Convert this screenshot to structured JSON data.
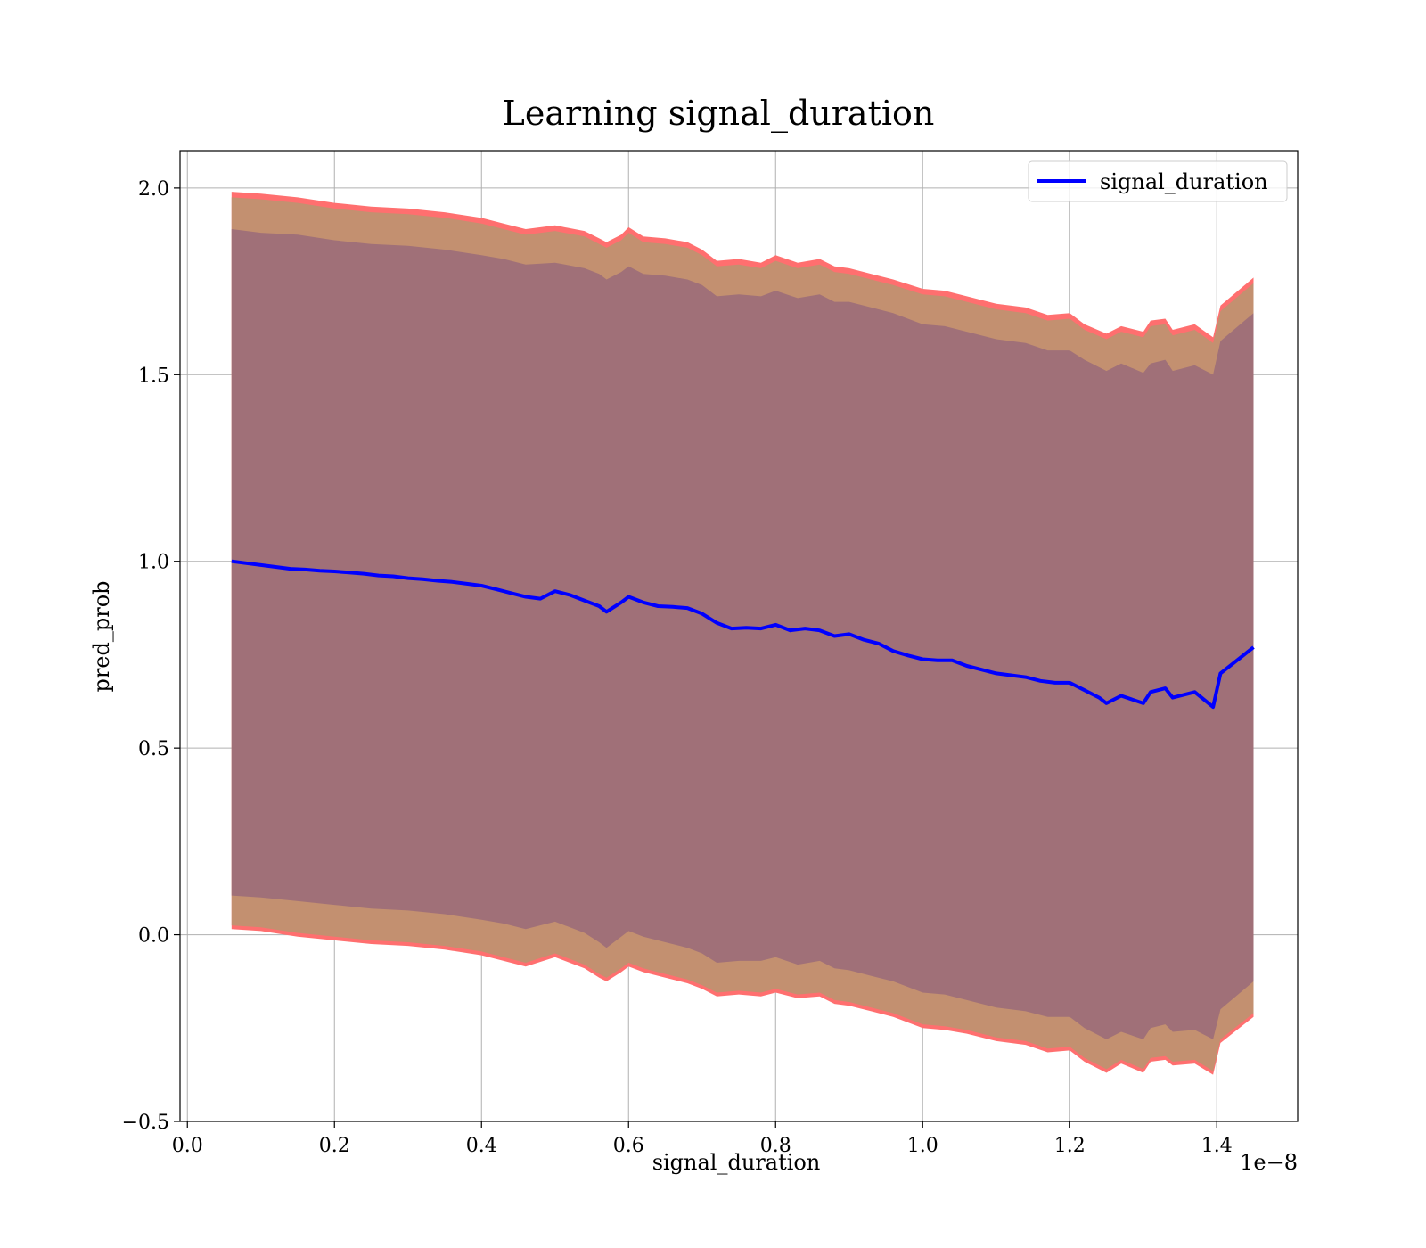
{
  "chart_data": {
    "type": "line",
    "title": "Learning signal_duration",
    "xlabel": "signal_duration",
    "ylabel": "pred_prob",
    "x_offset_label": "1e−8",
    "xlim": [
      -0.01,
      1.51
    ],
    "ylim": [
      -0.5,
      2.1
    ],
    "xticks": [
      0.0,
      0.2,
      0.4,
      0.6,
      0.8,
      1.0,
      1.2,
      1.4
    ],
    "xtick_labels": [
      "0.0",
      "0.2",
      "0.4",
      "0.6",
      "0.8",
      "1.0",
      "1.2",
      "1.4"
    ],
    "yticks": [
      -0.5,
      0.0,
      0.5,
      1.0,
      1.5,
      2.0
    ],
    "ytick_labels": [
      "−0.5",
      "0.0",
      "0.5",
      "1.0",
      "1.5",
      "2.0"
    ],
    "grid": true,
    "legend_position": "top-right",
    "colors": {
      "line": "#0000ff",
      "outer_band": "#ff6f6f",
      "middle_band": "#c39070",
      "inner_band": "#a07078",
      "grid": "#b0b0b0"
    },
    "series": [
      {
        "name": "signal_duration",
        "x": [
          0.06,
          0.08,
          0.1,
          0.12,
          0.14,
          0.16,
          0.18,
          0.2,
          0.22,
          0.24,
          0.26,
          0.28,
          0.3,
          0.32,
          0.34,
          0.36,
          0.38,
          0.4,
          0.42,
          0.44,
          0.46,
          0.48,
          0.5,
          0.52,
          0.54,
          0.56,
          0.57,
          0.59,
          0.6,
          0.62,
          0.64,
          0.66,
          0.68,
          0.7,
          0.72,
          0.74,
          0.76,
          0.78,
          0.8,
          0.82,
          0.84,
          0.86,
          0.88,
          0.9,
          0.92,
          0.94,
          0.96,
          0.98,
          1.0,
          1.02,
          1.04,
          1.06,
          1.08,
          1.1,
          1.12,
          1.14,
          1.16,
          1.18,
          1.2,
          1.22,
          1.24,
          1.25,
          1.27,
          1.3,
          1.31,
          1.33,
          1.34,
          1.37,
          1.395,
          1.405,
          1.45
        ],
        "y": [
          1.0,
          0.995,
          0.99,
          0.985,
          0.98,
          0.978,
          0.975,
          0.973,
          0.97,
          0.967,
          0.962,
          0.96,
          0.955,
          0.952,
          0.948,
          0.945,
          0.94,
          0.935,
          0.925,
          0.915,
          0.905,
          0.9,
          0.92,
          0.91,
          0.895,
          0.88,
          0.865,
          0.89,
          0.905,
          0.89,
          0.88,
          0.878,
          0.875,
          0.86,
          0.835,
          0.82,
          0.822,
          0.82,
          0.83,
          0.815,
          0.82,
          0.815,
          0.8,
          0.805,
          0.79,
          0.78,
          0.76,
          0.748,
          0.738,
          0.735,
          0.735,
          0.72,
          0.71,
          0.7,
          0.695,
          0.69,
          0.68,
          0.675,
          0.675,
          0.655,
          0.635,
          0.62,
          0.64,
          0.62,
          0.65,
          0.66,
          0.635,
          0.65,
          0.61,
          0.7,
          0.77
        ]
      }
    ],
    "bands": [
      {
        "role": "outer",
        "x": [
          0.06,
          0.1,
          0.15,
          0.2,
          0.25,
          0.3,
          0.35,
          0.4,
          0.43,
          0.46,
          0.5,
          0.54,
          0.56,
          0.57,
          0.59,
          0.6,
          0.62,
          0.65,
          0.68,
          0.7,
          0.72,
          0.75,
          0.78,
          0.8,
          0.83,
          0.86,
          0.88,
          0.9,
          0.93,
          0.96,
          1.0,
          1.03,
          1.06,
          1.1,
          1.14,
          1.17,
          1.2,
          1.22,
          1.25,
          1.27,
          1.3,
          1.31,
          1.33,
          1.34,
          1.37,
          1.395,
          1.405,
          1.45
        ],
        "upper": [
          1.99,
          1.985,
          1.975,
          1.96,
          1.95,
          1.945,
          1.935,
          1.92,
          1.905,
          1.89,
          1.9,
          1.885,
          1.865,
          1.855,
          1.875,
          1.895,
          1.87,
          1.865,
          1.855,
          1.835,
          1.805,
          1.81,
          1.8,
          1.82,
          1.8,
          1.81,
          1.79,
          1.785,
          1.77,
          1.755,
          1.73,
          1.725,
          1.71,
          1.69,
          1.68,
          1.66,
          1.665,
          1.635,
          1.61,
          1.63,
          1.615,
          1.645,
          1.65,
          1.62,
          1.635,
          1.6,
          1.685,
          1.76
        ],
        "lower": [
          0.015,
          0.01,
          -0.005,
          -0.015,
          -0.025,
          -0.03,
          -0.04,
          -0.055,
          -0.07,
          -0.085,
          -0.06,
          -0.09,
          -0.115,
          -0.125,
          -0.1,
          -0.085,
          -0.1,
          -0.115,
          -0.13,
          -0.145,
          -0.165,
          -0.16,
          -0.165,
          -0.155,
          -0.17,
          -0.165,
          -0.185,
          -0.19,
          -0.205,
          -0.22,
          -0.25,
          -0.255,
          -0.265,
          -0.285,
          -0.295,
          -0.315,
          -0.31,
          -0.34,
          -0.37,
          -0.345,
          -0.37,
          -0.34,
          -0.335,
          -0.35,
          -0.345,
          -0.375,
          -0.29,
          -0.22
        ]
      },
      {
        "role": "middle",
        "x": [
          0.06,
          0.1,
          0.15,
          0.2,
          0.25,
          0.3,
          0.35,
          0.4,
          0.43,
          0.46,
          0.5,
          0.54,
          0.56,
          0.57,
          0.59,
          0.6,
          0.62,
          0.65,
          0.68,
          0.7,
          0.72,
          0.75,
          0.78,
          0.8,
          0.83,
          0.86,
          0.88,
          0.9,
          0.93,
          0.96,
          1.0,
          1.03,
          1.06,
          1.1,
          1.14,
          1.17,
          1.2,
          1.22,
          1.25,
          1.27,
          1.3,
          1.31,
          1.33,
          1.34,
          1.37,
          1.395,
          1.405,
          1.45
        ],
        "upper": [
          1.975,
          1.97,
          1.96,
          1.945,
          1.935,
          1.93,
          1.92,
          1.905,
          1.89,
          1.875,
          1.885,
          1.87,
          1.85,
          1.84,
          1.86,
          1.88,
          1.855,
          1.85,
          1.84,
          1.82,
          1.79,
          1.795,
          1.785,
          1.805,
          1.785,
          1.795,
          1.775,
          1.77,
          1.755,
          1.74,
          1.715,
          1.71,
          1.695,
          1.675,
          1.665,
          1.645,
          1.65,
          1.62,
          1.595,
          1.615,
          1.6,
          1.63,
          1.635,
          1.605,
          1.62,
          1.585,
          1.67,
          1.745
        ],
        "lower": [
          0.025,
          0.02,
          0.005,
          -0.005,
          -0.015,
          -0.02,
          -0.03,
          -0.045,
          -0.06,
          -0.075,
          -0.05,
          -0.08,
          -0.105,
          -0.115,
          -0.09,
          -0.075,
          -0.09,
          -0.105,
          -0.12,
          -0.135,
          -0.155,
          -0.15,
          -0.155,
          -0.145,
          -0.16,
          -0.155,
          -0.175,
          -0.18,
          -0.195,
          -0.21,
          -0.24,
          -0.245,
          -0.255,
          -0.275,
          -0.285,
          -0.305,
          -0.3,
          -0.33,
          -0.36,
          -0.335,
          -0.36,
          -0.33,
          -0.325,
          -0.34,
          -0.335,
          -0.365,
          -0.28,
          -0.21
        ]
      },
      {
        "role": "inner",
        "x": [
          0.06,
          0.1,
          0.15,
          0.2,
          0.25,
          0.3,
          0.35,
          0.4,
          0.43,
          0.46,
          0.5,
          0.54,
          0.56,
          0.57,
          0.59,
          0.6,
          0.62,
          0.65,
          0.68,
          0.7,
          0.72,
          0.75,
          0.78,
          0.8,
          0.83,
          0.86,
          0.88,
          0.9,
          0.93,
          0.96,
          1.0,
          1.03,
          1.06,
          1.1,
          1.14,
          1.17,
          1.2,
          1.22,
          1.25,
          1.27,
          1.3,
          1.31,
          1.33,
          1.34,
          1.37,
          1.395,
          1.405,
          1.45
        ],
        "upper": [
          1.89,
          1.88,
          1.875,
          1.86,
          1.85,
          1.845,
          1.835,
          1.82,
          1.81,
          1.795,
          1.8,
          1.785,
          1.77,
          1.755,
          1.775,
          1.79,
          1.77,
          1.765,
          1.755,
          1.74,
          1.71,
          1.715,
          1.71,
          1.725,
          1.705,
          1.715,
          1.695,
          1.695,
          1.68,
          1.665,
          1.635,
          1.63,
          1.615,
          1.595,
          1.585,
          1.565,
          1.565,
          1.54,
          1.51,
          1.53,
          1.505,
          1.53,
          1.54,
          1.51,
          1.525,
          1.5,
          1.59,
          1.665
        ],
        "lower": [
          0.105,
          0.1,
          0.09,
          0.08,
          0.07,
          0.065,
          0.055,
          0.04,
          0.03,
          0.015,
          0.035,
          0.005,
          -0.02,
          -0.035,
          -0.005,
          0.01,
          -0.005,
          -0.02,
          -0.035,
          -0.05,
          -0.075,
          -0.07,
          -0.07,
          -0.06,
          -0.08,
          -0.07,
          -0.09,
          -0.095,
          -0.11,
          -0.125,
          -0.155,
          -0.16,
          -0.175,
          -0.195,
          -0.205,
          -0.22,
          -0.22,
          -0.25,
          -0.28,
          -0.26,
          -0.28,
          -0.25,
          -0.24,
          -0.26,
          -0.255,
          -0.28,
          -0.2,
          -0.125
        ]
      }
    ]
  }
}
